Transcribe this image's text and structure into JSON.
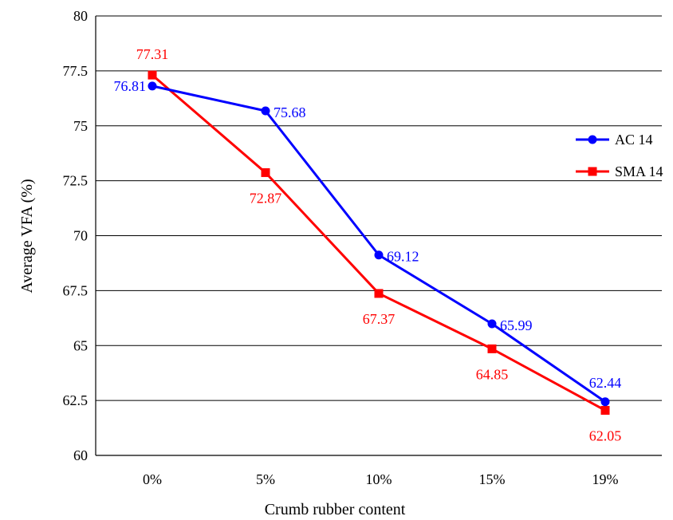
{
  "chart_data": {
    "type": "line",
    "title": "",
    "xlabel": "Crumb rubber content",
    "ylabel": "Average VFA (%)",
    "categories": [
      "0%",
      "5%",
      "10%",
      "15%",
      "19%"
    ],
    "ylim": [
      60,
      80
    ],
    "yticks": [
      "60",
      "62.5",
      "65",
      "67.5",
      "70",
      "72.5",
      "75",
      "77.5",
      "80"
    ],
    "grid": true,
    "legend_position": "right",
    "series": [
      {
        "name": "AC 14",
        "color": "#0000ff",
        "marker": "circle",
        "values": [
          76.81,
          75.68,
          69.12,
          65.99,
          62.44
        ],
        "labels": [
          "76.81",
          "75.68",
          "69.12",
          "65.99",
          "62.44"
        ]
      },
      {
        "name": "SMA 14",
        "color": "#ff0000",
        "marker": "square",
        "values": [
          77.31,
          72.87,
          67.37,
          64.85,
          62.05
        ],
        "labels": [
          "77.31",
          "72.87",
          "67.37",
          "64.85",
          "62.05"
        ]
      }
    ]
  }
}
